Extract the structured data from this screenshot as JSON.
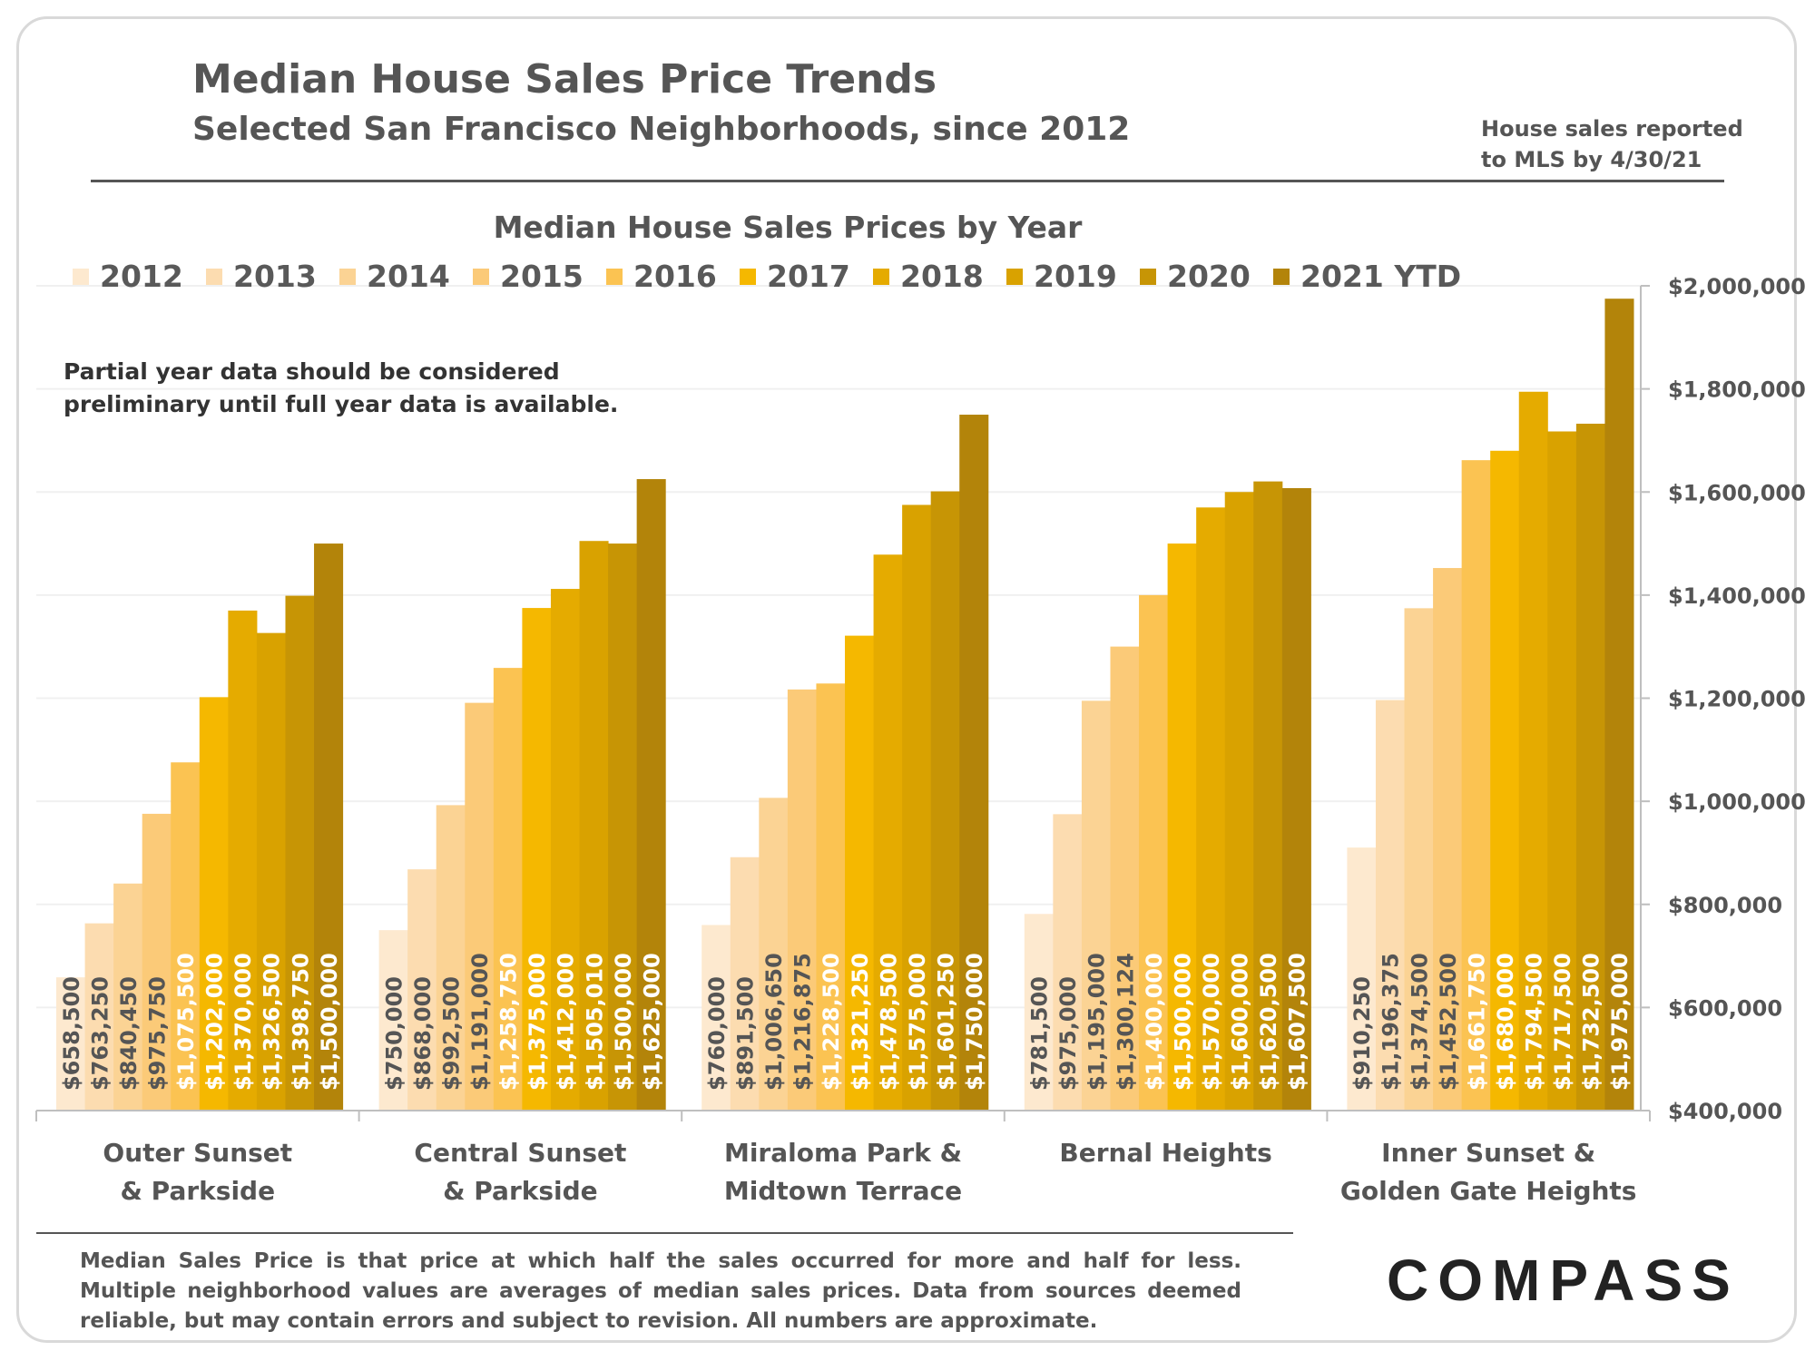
{
  "header": {
    "title": "Median House Sales Price Trends",
    "subtitle": "Selected San Francisco Neighborhoods, since 2012",
    "note_line1": "House sales reported",
    "note_line2": "to MLS by 4/30/21"
  },
  "chart_data": {
    "type": "bar",
    "title": "Median House Sales Prices by Year",
    "annotation_lines": [
      "Partial year data should be considered",
      "preliminary until full year data is available."
    ],
    "categories": [
      [
        "Outer Sunset",
        "& Parkside"
      ],
      [
        "Central Sunset",
        "& Parkside"
      ],
      [
        "Miraloma Park &",
        "Midtown Terrace"
      ],
      [
        "Bernal Heights"
      ],
      [
        "Inner Sunset &",
        "Golden Gate Heights"
      ]
    ],
    "series": [
      {
        "name": "2012",
        "color": "#fde9cf",
        "values": [
          658500,
          750000,
          760000,
          781500,
          910250
        ]
      },
      {
        "name": "2013",
        "color": "#fcdcb0",
        "values": [
          763250,
          868000,
          891500,
          975000,
          1196375
        ]
      },
      {
        "name": "2014",
        "color": "#fbd394",
        "values": [
          840450,
          992500,
          1006650,
          1195000,
          1374500
        ]
      },
      {
        "name": "2015",
        "color": "#fbca78",
        "values": [
          975750,
          1191000,
          1216875,
          1300124,
          1452500
        ]
      },
      {
        "name": "2016",
        "color": "#fbc352",
        "values": [
          1075500,
          1258750,
          1228500,
          1400000,
          1661750
        ]
      },
      {
        "name": "2017",
        "color": "#f5b800",
        "values": [
          1202000,
          1375000,
          1321250,
          1500000,
          1680000
        ]
      },
      {
        "name": "2018",
        "color": "#e5ab00",
        "values": [
          1370000,
          1412000,
          1478500,
          1570000,
          1794500
        ]
      },
      {
        "name": "2019",
        "color": "#d9a200",
        "values": [
          1326500,
          1505010,
          1575000,
          1600000,
          1717500
        ]
      },
      {
        "name": "2020",
        "color": "#c79505",
        "values": [
          1398750,
          1500000,
          1601250,
          1620500,
          1732500
        ]
      },
      {
        "name": "2021 YTD",
        "color": "#b3840a",
        "values": [
          1500000,
          1625000,
          1750000,
          1607500,
          1975000
        ]
      }
    ],
    "data_labels": [
      [
        "$658,500",
        "$763,250",
        "$840,450",
        "$975,750",
        "$1,075,500",
        "$1,202,000",
        "$1,370,000",
        "$1,326,500",
        "$1,398,750",
        "$1,500,000"
      ],
      [
        "$750,000",
        "$868,000",
        "$992,500",
        "$1,191,000",
        "$1,258,750",
        "$1,375,000",
        "$1,412,000",
        "$1,505,010",
        "$1,500,000",
        "$1,625,000"
      ],
      [
        "$760,000",
        "$891,500",
        "$1,006,650",
        "$1,216,875",
        "$1,228,500",
        "$1,321,250",
        "$1,478,500",
        "$1,575,000",
        "$1,601,250",
        "$1,750,000"
      ],
      [
        "$781,500",
        "$975,000",
        "$1,195,000",
        "$1,300,124",
        "$1,400,000",
        "$1,500,000",
        "$1,570,000",
        "$1,600,000",
        "$1,620,500",
        "$1,607,500"
      ],
      [
        "$910,250",
        "$1,196,375",
        "$1,374,500",
        "$1,452,500",
        "$1,661,750",
        "$1,680,000",
        "$1,794,500",
        "$1,717,500",
        "$1,732,500",
        "$1,975,000"
      ]
    ],
    "y_ticks": [
      {
        "value": 400000,
        "label": "$400,000"
      },
      {
        "value": 600000,
        "label": "$600,000"
      },
      {
        "value": 800000,
        "label": "$800,000"
      },
      {
        "value": 1000000,
        "label": "$1,000,000"
      },
      {
        "value": 1200000,
        "label": "$1,200,000"
      },
      {
        "value": 1400000,
        "label": "$1,400,000"
      },
      {
        "value": 1600000,
        "label": "$1,600,000"
      },
      {
        "value": 1800000,
        "label": "$1,800,000"
      },
      {
        "value": 2000000,
        "label": "$2,000,000"
      }
    ],
    "ylim": [
      400000,
      2000000
    ],
    "y_axis_side": "right",
    "legend_position": "top",
    "gridlines": true,
    "label_text_color_dark": "#555555",
    "label_text_color_light": "#ffffff"
  },
  "footer": {
    "footnote": "Median Sales Price is that price at which half the sales occurred for more and half for less. Multiple neighborhood values are averages of median sales prices. Data from sources deemed reliable, but may contain errors and subject to revision.  All numbers are approximate.",
    "logo_text": "COMPASS"
  }
}
